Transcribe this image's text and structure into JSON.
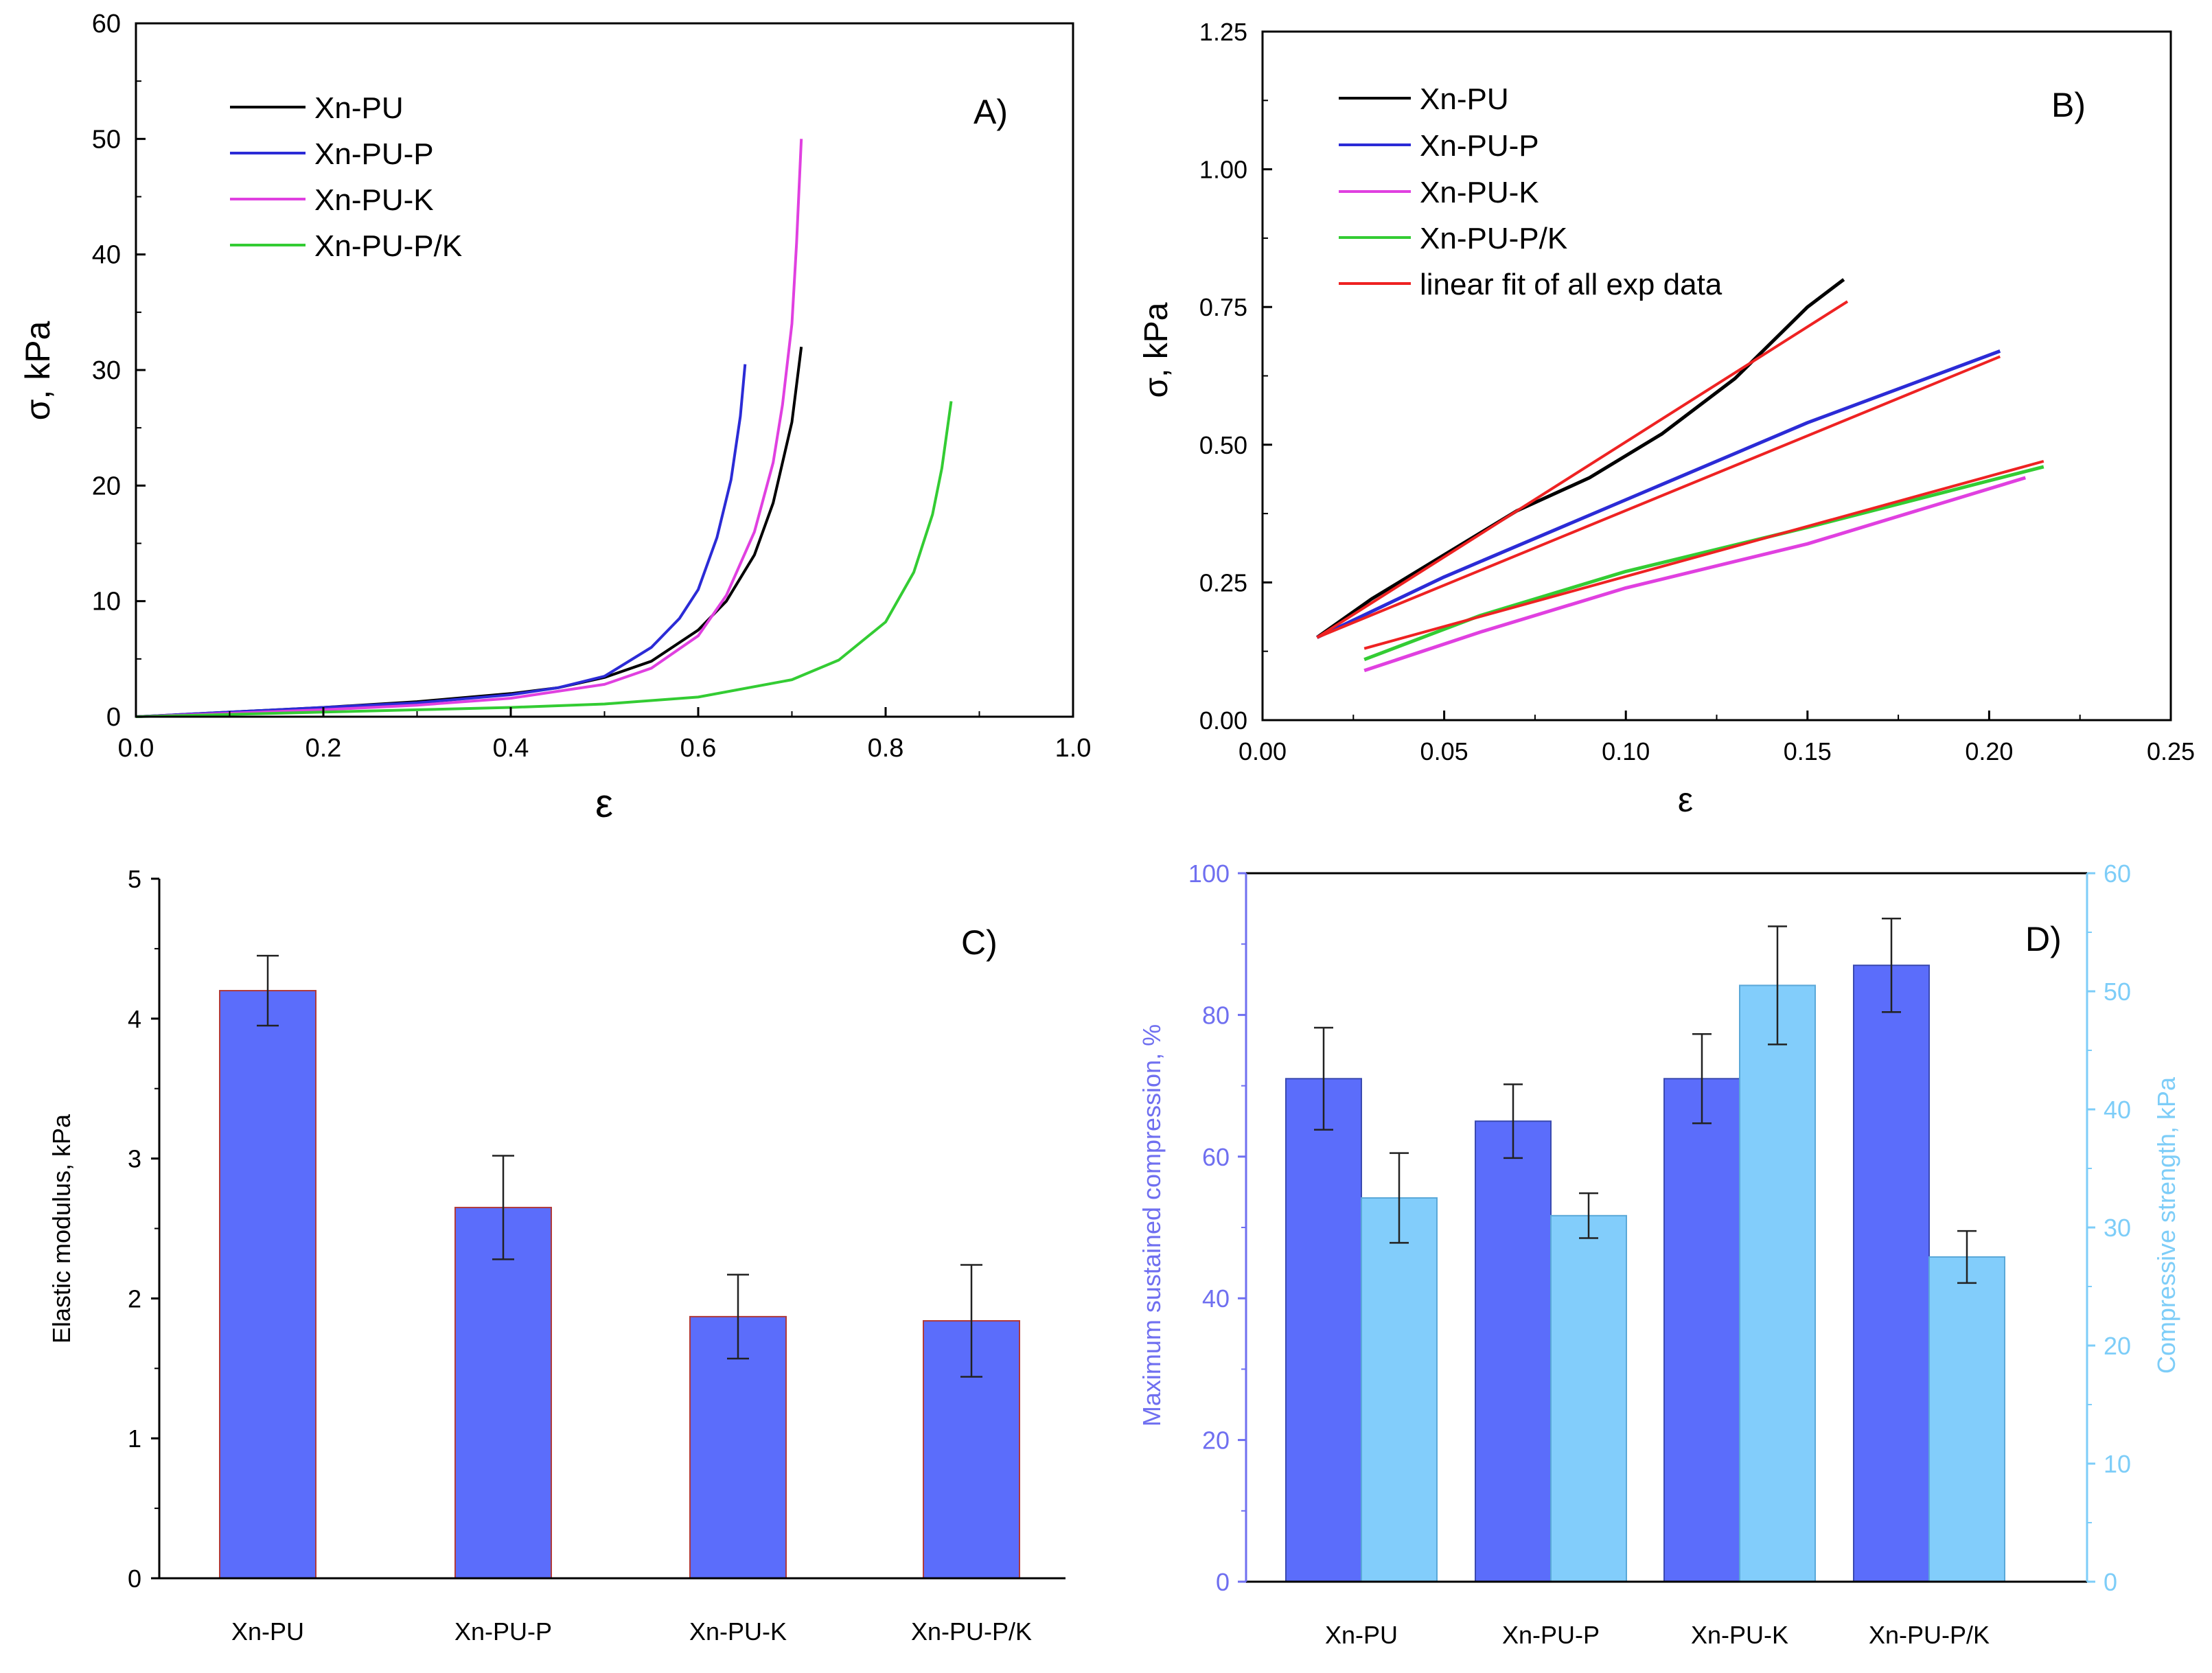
{
  "colors": {
    "xnpu": "#000000",
    "xnpup": "#2b2bd6",
    "xnpuk": "#e040e0",
    "xnpupk": "#33cc33",
    "fit": "#ee2222",
    "bar_blue": "#5b6dfb",
    "bar_light": "#82cdfb",
    "bar_edge_c": "#b03a3a",
    "axis_left_d": "#6f6ff0",
    "axis_right_d": "#7dcdf8"
  },
  "chart_data": [
    {
      "panel": "A)",
      "type": "line",
      "xlabel": "ε",
      "ylabel": "σ, kPa",
      "xlim": [
        0.0,
        1.0
      ],
      "ylim": [
        0,
        60
      ],
      "xticks": [
        "0.0",
        "0.2",
        "0.4",
        "0.6",
        "0.8",
        "1.0"
      ],
      "yticks": [
        "0",
        "10",
        "20",
        "30",
        "40",
        "50",
        "60"
      ],
      "legend": [
        "Xn-PU",
        "Xn-PU-P",
        "Xn-PU-K",
        "Xn-PU-P/K"
      ],
      "series": [
        {
          "name": "Xn-PU",
          "color_key": "xnpu",
          "x": [
            0.0,
            0.1,
            0.2,
            0.3,
            0.4,
            0.45,
            0.5,
            0.55,
            0.6,
            0.63,
            0.66,
            0.68,
            0.7,
            0.71
          ],
          "y": [
            0.0,
            0.4,
            0.8,
            1.3,
            2.0,
            2.5,
            3.4,
            4.8,
            7.5,
            10.0,
            14.0,
            18.5,
            25.5,
            32.0
          ]
        },
        {
          "name": "Xn-PU-P",
          "color_key": "xnpup",
          "x": [
            0.0,
            0.1,
            0.2,
            0.3,
            0.4,
            0.45,
            0.5,
            0.55,
            0.58,
            0.6,
            0.62,
            0.635,
            0.645,
            0.65
          ],
          "y": [
            0.0,
            0.4,
            0.8,
            1.2,
            1.9,
            2.5,
            3.5,
            6.0,
            8.5,
            11.0,
            15.5,
            20.5,
            26.0,
            30.5
          ]
        },
        {
          "name": "Xn-PU-K",
          "color_key": "xnpuk",
          "x": [
            0.0,
            0.1,
            0.2,
            0.3,
            0.4,
            0.5,
            0.55,
            0.6,
            0.63,
            0.66,
            0.68,
            0.69,
            0.7,
            0.705,
            0.71
          ],
          "y": [
            0.0,
            0.3,
            0.6,
            1.0,
            1.6,
            2.8,
            4.2,
            7.0,
            10.5,
            16.0,
            22.0,
            27.0,
            34.0,
            41.0,
            50.0
          ]
        },
        {
          "name": "Xn-PU-P/K",
          "color_key": "xnpupk",
          "x": [
            0.0,
            0.1,
            0.2,
            0.3,
            0.4,
            0.5,
            0.6,
            0.7,
            0.75,
            0.8,
            0.83,
            0.85,
            0.86,
            0.87
          ],
          "y": [
            0.0,
            0.2,
            0.4,
            0.6,
            0.8,
            1.1,
            1.7,
            3.2,
            4.9,
            8.2,
            12.5,
            17.5,
            21.5,
            27.3
          ]
        }
      ]
    },
    {
      "panel": "B)",
      "type": "line",
      "xlabel": "ε",
      "ylabel": "σ, kPa",
      "xlim": [
        0.0,
        0.25
      ],
      "ylim": [
        0.0,
        1.25
      ],
      "xticks": [
        "0.00",
        "0.05",
        "0.10",
        "0.15",
        "0.20",
        "0.25"
      ],
      "yticks": [
        "0.00",
        "0.25",
        "0.50",
        "0.75",
        "1.00",
        "1.25"
      ],
      "legend": [
        "Xn-PU",
        "Xn-PU-P",
        "Xn-PU-K",
        "Xn-PU-P/K",
        "linear fit of all exp data"
      ],
      "series": [
        {
          "name": "Xn-PU",
          "color_key": "xnpu",
          "x": [
            0.015,
            0.03,
            0.05,
            0.07,
            0.09,
            0.11,
            0.13,
            0.15,
            0.16
          ],
          "y": [
            0.15,
            0.22,
            0.3,
            0.38,
            0.44,
            0.52,
            0.62,
            0.75,
            0.8
          ]
        },
        {
          "name": "Xn-PU-P",
          "color_key": "xnpup",
          "x": [
            0.015,
            0.05,
            0.1,
            0.15,
            0.203
          ],
          "y": [
            0.15,
            0.26,
            0.4,
            0.54,
            0.67
          ]
        },
        {
          "name": "Xn-PU-K",
          "color_key": "xnpuk",
          "x": [
            0.028,
            0.06,
            0.1,
            0.15,
            0.21
          ],
          "y": [
            0.09,
            0.16,
            0.24,
            0.32,
            0.44
          ]
        },
        {
          "name": "Xn-PU-P/K",
          "color_key": "xnpupk",
          "x": [
            0.028,
            0.06,
            0.1,
            0.15,
            0.215
          ],
          "y": [
            0.11,
            0.19,
            0.27,
            0.35,
            0.46
          ]
        },
        {
          "name": "linear fit of all exp data",
          "color_key": "fit",
          "segments": [
            {
              "x": [
                0.015,
                0.161
              ],
              "y": [
                0.15,
                0.76
              ]
            },
            {
              "x": [
                0.015,
                0.203
              ],
              "y": [
                0.15,
                0.66
              ]
            },
            {
              "x": [
                0.028,
                0.215
              ],
              "y": [
                0.13,
                0.47
              ]
            }
          ]
        }
      ]
    },
    {
      "panel": "C)",
      "type": "bar",
      "ylabel": "Elastic modulus, kPa",
      "ylim": [
        0,
        5
      ],
      "yticks": [
        "0",
        "1",
        "2",
        "3",
        "4",
        "5"
      ],
      "categories": [
        "Xn-PU",
        "Xn-PU-P",
        "Xn-PU-K",
        "Xn-PU-P/K"
      ],
      "values": [
        4.2,
        2.65,
        1.87,
        1.84
      ],
      "errors": [
        0.25,
        0.37,
        0.3,
        0.4
      ]
    },
    {
      "panel": "D)",
      "type": "bar",
      "ylabel": "Maximum sustained compression, %",
      "y2label": "Compressive strength, kPa",
      "ylim": [
        0,
        100
      ],
      "y2lim": [
        0,
        60
      ],
      "yticks": [
        "0",
        "20",
        "40",
        "60",
        "80",
        "100"
      ],
      "y2ticks": [
        "0",
        "10",
        "20",
        "30",
        "40",
        "50",
        "60"
      ],
      "categories": [
        "Xn-PU",
        "Xn-PU-P",
        "Xn-PU-K",
        "Xn-PU-P/K"
      ],
      "series": [
        {
          "name": "Maximum sustained compression, %",
          "axis": "left",
          "values": [
            71,
            65,
            71,
            87
          ],
          "errors": [
            7.2,
            5.2,
            6.3,
            6.6
          ]
        },
        {
          "name": "Compressive strength, kPa",
          "axis": "right",
          "values": [
            32.5,
            31,
            50.5,
            27.5
          ],
          "errors": [
            3.8,
            1.9,
            5.0,
            2.2
          ]
        }
      ]
    }
  ]
}
